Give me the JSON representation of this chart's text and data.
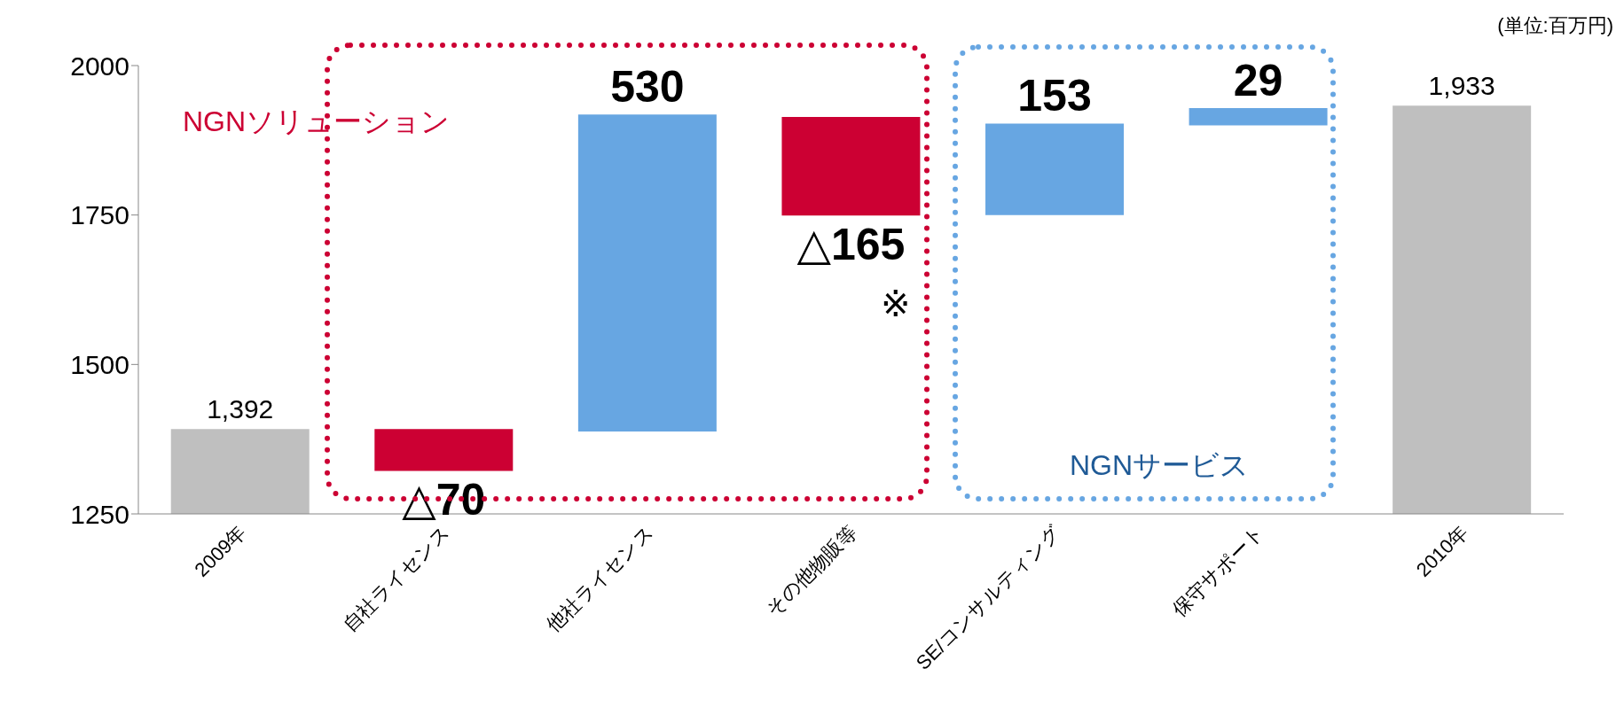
{
  "chart_data": {
    "type": "bar",
    "categories": [
      "2009年",
      "自社ライセンス",
      "他社ライセンス",
      "その他物販等",
      "SE/コンサルティング",
      "保守サポート",
      "2010年"
    ],
    "values": [
      1392,
      -70,
      530,
      -165,
      153,
      29,
      1933
    ],
    "base": [
      null,
      1392,
      1388,
      1914,
      1750,
      1900,
      null
    ],
    "colors": [
      "#bfbfbf",
      "#cc0033",
      "#67a6e2",
      "#cc0033",
      "#67a6e2",
      "#67a6e2",
      "#bfbfbf"
    ],
    "value_labels": [
      "1,392",
      "△70",
      "530",
      "△165",
      "153",
      "29",
      "1,933"
    ],
    "ylim": [
      1250,
      2000
    ],
    "yticks": [
      1250,
      1500,
      1750,
      2000
    ],
    "annotations": [
      "(単位:百万円)",
      "NGNソリューション",
      "NGNサービス",
      "※"
    ]
  }
}
